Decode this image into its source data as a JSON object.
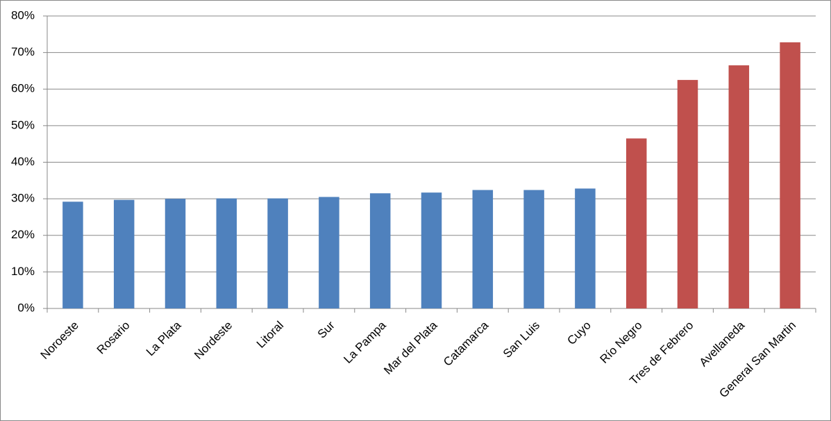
{
  "chart_data": {
    "type": "bar",
    "categories": [
      "Noroeste",
      "Rosario",
      "La Plata",
      "Nordeste",
      "Litoral",
      "Sur",
      "La Pampa",
      "Mar del Plata",
      "Catamarca",
      "San Luis",
      "Cuyo",
      "Río Negro",
      "Tres de Febrero",
      "Avellaneda",
      "General San Martin"
    ],
    "values": [
      29.2,
      29.7,
      30.0,
      30.1,
      30.1,
      30.5,
      31.5,
      31.7,
      32.4,
      32.4,
      32.8,
      46.5,
      62.5,
      66.5,
      72.8
    ],
    "colors": [
      "#4f81bd",
      "#4f81bd",
      "#4f81bd",
      "#4f81bd",
      "#4f81bd",
      "#4f81bd",
      "#4f81bd",
      "#4f81bd",
      "#4f81bd",
      "#4f81bd",
      "#4f81bd",
      "#c0504d",
      "#c0504d",
      "#c0504d",
      "#c0504d"
    ],
    "ylim": [
      0,
      80
    ],
    "yticks": [
      {
        "value": 0,
        "label": "0%"
      },
      {
        "value": 10,
        "label": "10%"
      },
      {
        "value": 20,
        "label": "20%"
      },
      {
        "value": 30,
        "label": "30%"
      },
      {
        "value": 40,
        "label": "40%"
      },
      {
        "value": 50,
        "label": "50%"
      },
      {
        "value": 60,
        "label": "60%"
      },
      {
        "value": 70,
        "label": "70%"
      },
      {
        "value": 80,
        "label": "80%"
      }
    ],
    "grid": true
  }
}
